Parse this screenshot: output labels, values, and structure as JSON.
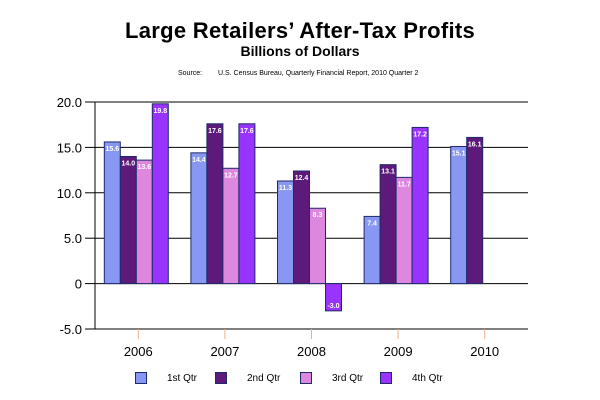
{
  "chart_data": {
    "type": "bar",
    "title": "Large Retailers’ After-Tax Profits",
    "subtitle": "Billions of Dollars",
    "source_label": "Source:",
    "source_text": "U.S. Census Bureau, Quarterly Financial Report, 2010 Quarter 2",
    "xlabel": "",
    "ylabel": "",
    "ylim": [
      -5,
      20
    ],
    "yticks": [
      {
        "value": 20,
        "label": "20.0"
      },
      {
        "value": 15,
        "label": "15.0"
      },
      {
        "value": 10,
        "label": "10.0"
      },
      {
        "value": 5,
        "label": "5.0"
      },
      {
        "value": 0,
        "label": "0"
      },
      {
        "value": -5,
        "label": "-5.0"
      }
    ],
    "grid": true,
    "legend_position": "bottom",
    "categories": [
      "2006",
      "2007",
      "2008",
      "2009",
      "2010"
    ],
    "series": [
      {
        "name": "1st Qtr",
        "color": "#8898f2",
        "values": [
          15.6,
          14.4,
          11.3,
          7.4,
          15.1
        ],
        "labels": [
          "15.6",
          "14.4",
          "11.3",
          "7.4",
          "15.1"
        ]
      },
      {
        "name": "2nd Qtr",
        "color": "#5e1a7a",
        "values": [
          14.0,
          17.6,
          12.4,
          13.1,
          16.1
        ],
        "labels": [
          "14.0",
          "17.6",
          "12.4",
          "13.1",
          "16.1"
        ]
      },
      {
        "name": "3rd Qtr",
        "color": "#dd88de",
        "values": [
          13.6,
          12.7,
          8.3,
          11.7,
          null
        ],
        "labels": [
          "13.6",
          "12.7",
          "8.3",
          "11.7",
          null
        ]
      },
      {
        "name": "4th Qtr",
        "color": "#9933ff",
        "values": [
          19.8,
          17.6,
          -3.0,
          17.2,
          null
        ],
        "labels": [
          "19.8",
          "17.6",
          "-3.0",
          "17.2",
          null
        ]
      }
    ]
  }
}
